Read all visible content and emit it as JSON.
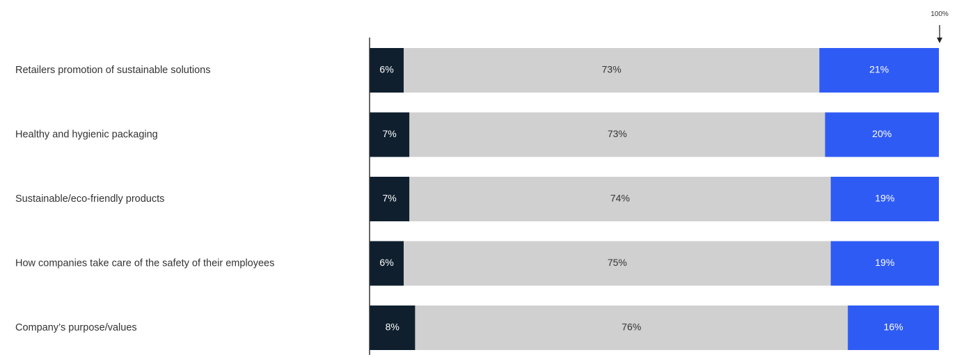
{
  "chart_data": {
    "type": "bar",
    "stacked": true,
    "orientation": "horizontal",
    "categories": [
      "Retailers promotion of sustainable solutions",
      "Healthy and hygienic packaging",
      "Sustainable/eco-friendly products",
      "How companies take care of the safety of their employees",
      "Company’s purpose/values"
    ],
    "series": [
      {
        "values": [
          6,
          7,
          7,
          6,
          8
        ],
        "color": "#0f1f2e",
        "label_color": "#ffffff"
      },
      {
        "values": [
          73,
          73,
          74,
          75,
          76
        ],
        "color": "#d0d0d0",
        "label_color": "#333333"
      },
      {
        "values": [
          21,
          20,
          19,
          19,
          16
        ],
        "color": "#2f5bf5",
        "label_color": "#ffffff"
      }
    ],
    "data_labels": [
      [
        "6%",
        "7%",
        "7%",
        "6%",
        "8%"
      ],
      [
        "73%",
        "73%",
        "74%",
        "75%",
        "76%"
      ],
      [
        "21%",
        "20%",
        "19%",
        "19%",
        "16%"
      ]
    ],
    "xlim": [
      0,
      100
    ],
    "reference_label": "100%",
    "grid": false,
    "legend": "none"
  }
}
